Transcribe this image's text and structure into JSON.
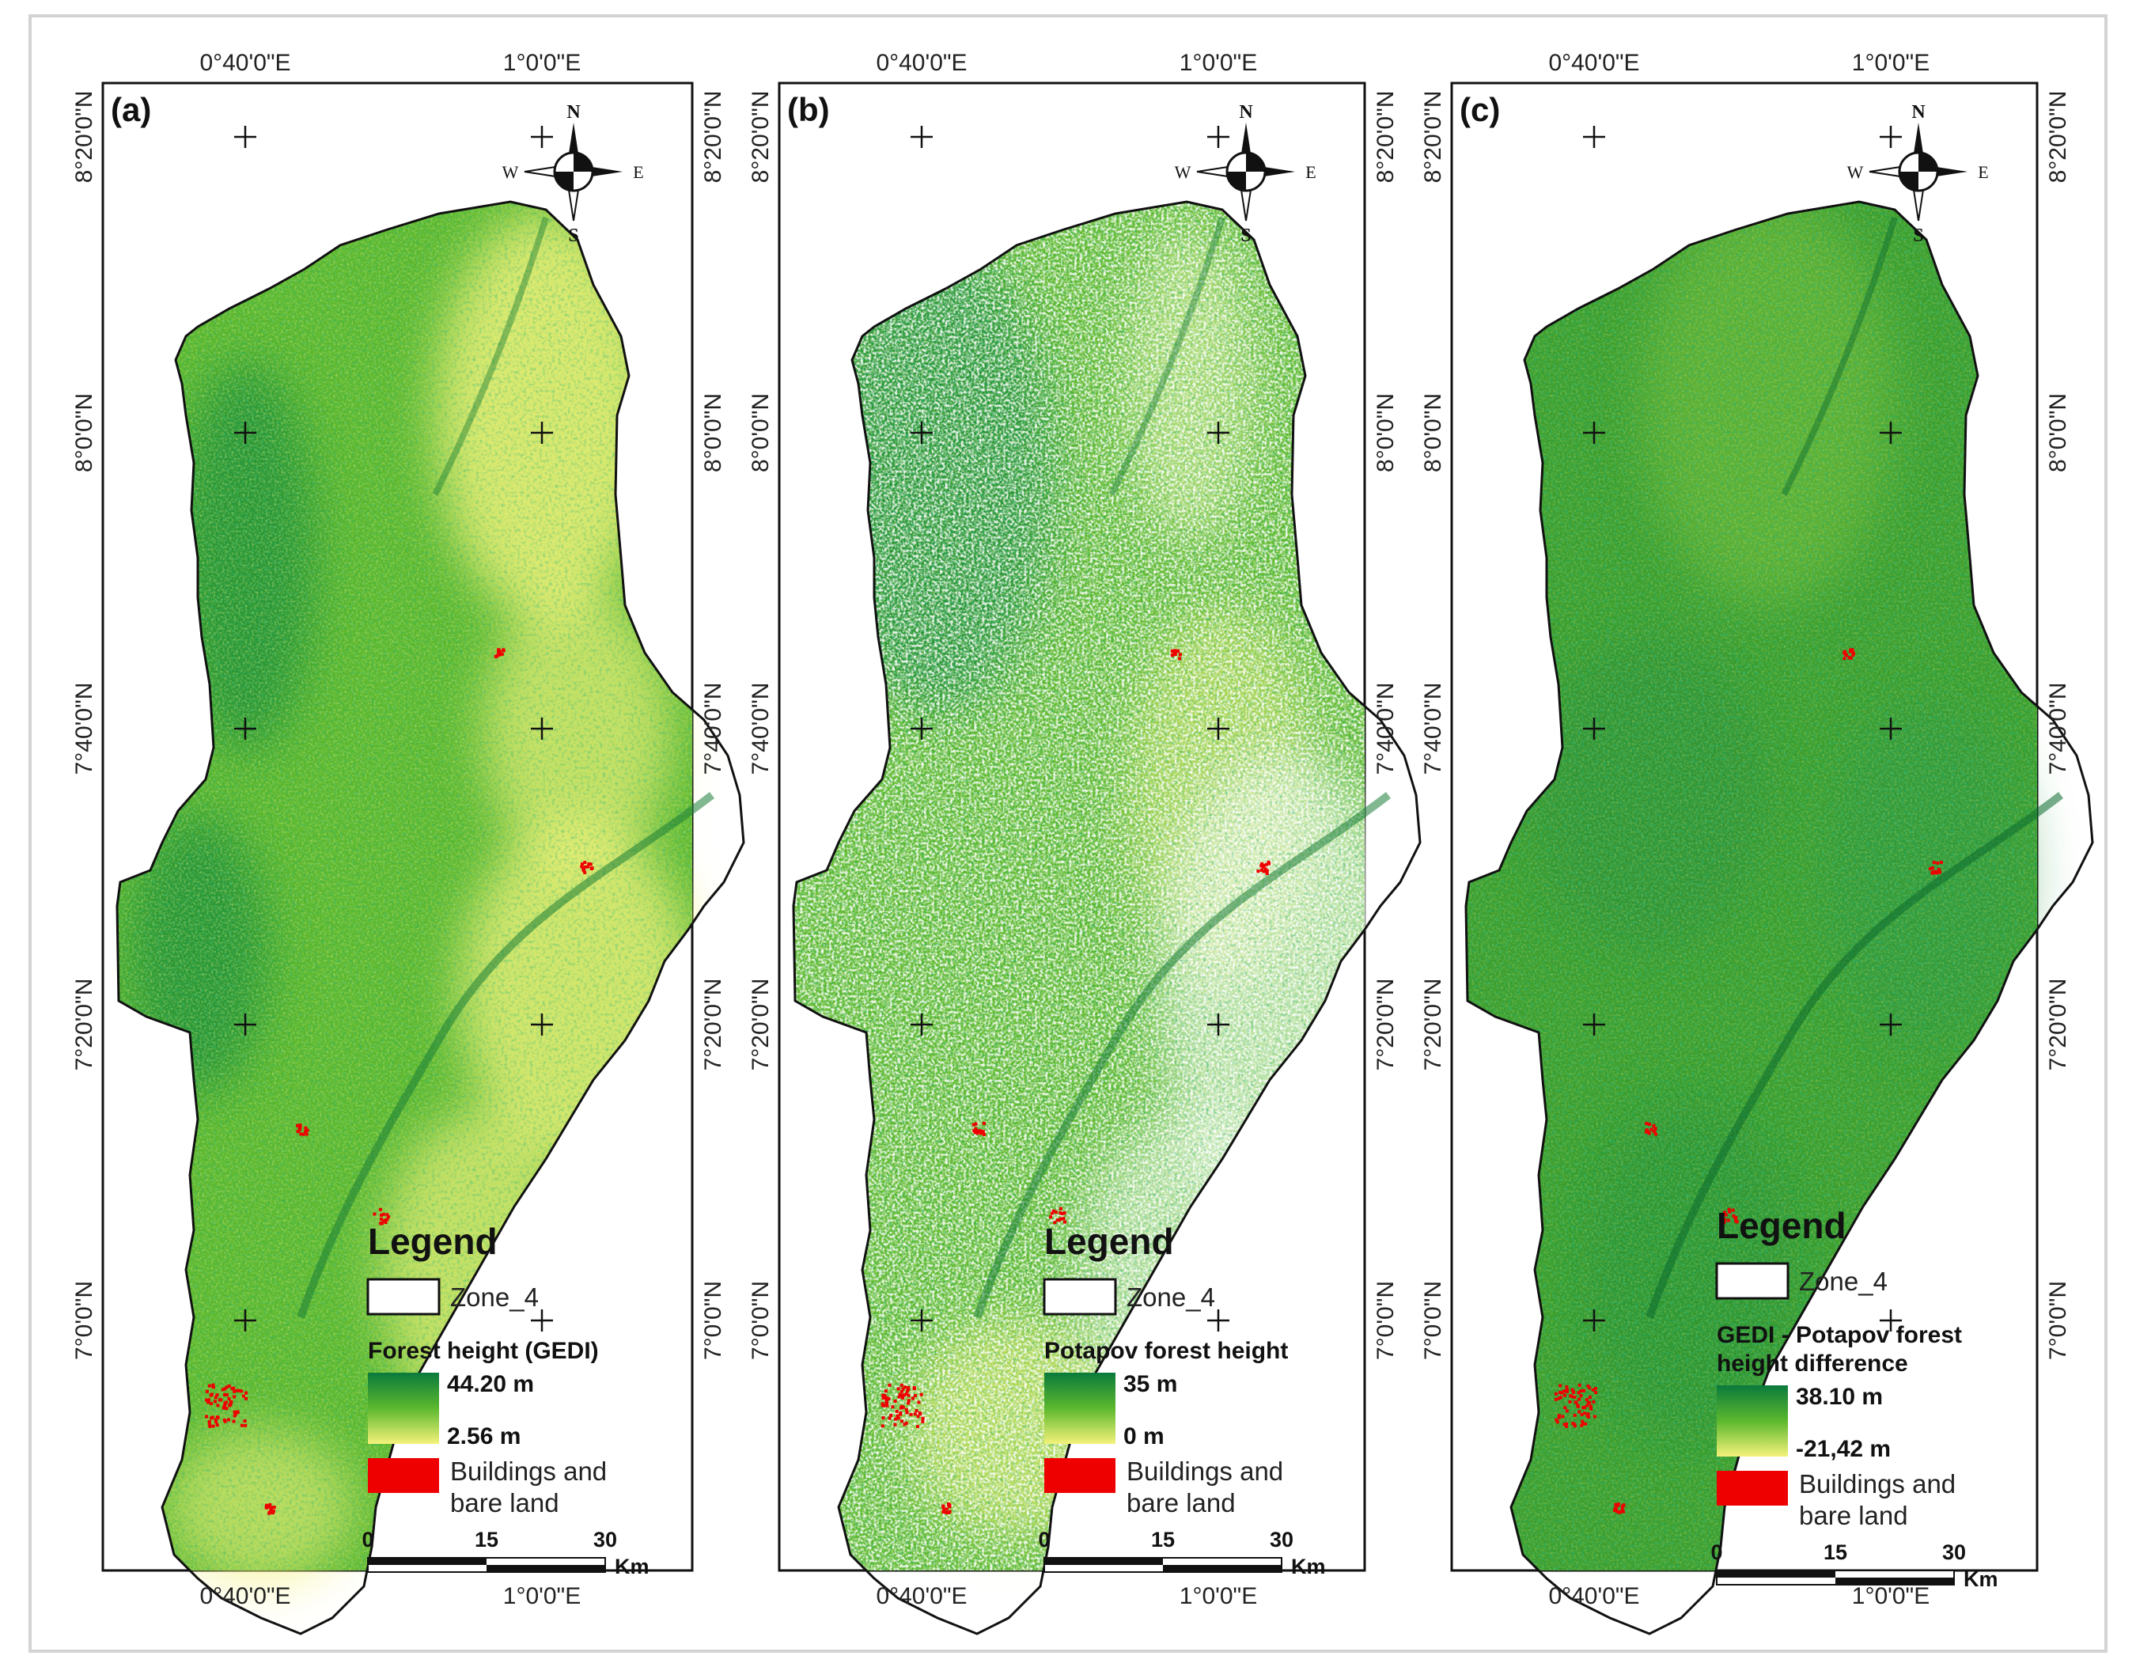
{
  "colors": {
    "high": "#0a7a3c",
    "mid": "#5cb82e",
    "low": "#f4f27a",
    "buildings": "#ee0000",
    "no_data": "#ffffff"
  },
  "axis_labels": {
    "lon_1": "0°40'0\"E",
    "lon_2": "1°0'0\"E",
    "lat_1": "8°20'0\"N",
    "lat_2": "8°0'0\"N",
    "lat_3": "7°40'0\"N",
    "lat_4": "7°20'0\"N",
    "lat_5": "7°0'0\"N"
  },
  "compass": {
    "n": "N",
    "s": "S",
    "e": "E",
    "w": "W"
  },
  "panels": [
    {
      "letter": "(a)",
      "legend_title": "Legend",
      "zone_label": "Zone_4",
      "layer_title_1": "Forest height (GEDI)",
      "layer_title_2": "",
      "max_label": "44.20 m",
      "min_label": "2.56 m",
      "buildings_label_1": "Buildings and",
      "buildings_label_2": "bare land",
      "scale": {
        "s0": "0",
        "s1": "15",
        "s2": "30",
        "unit": "Km"
      },
      "map_style": "a"
    },
    {
      "letter": "(b)",
      "legend_title": "Legend",
      "zone_label": "Zone_4",
      "layer_title_1": "Potapov forest height",
      "layer_title_2": "",
      "max_label": "35 m",
      "min_label": "0 m",
      "buildings_label_1": "Buildings and",
      "buildings_label_2": "bare land",
      "scale": {
        "s0": "0",
        "s1": "15",
        "s2": "30",
        "unit": "Km"
      },
      "map_style": "b"
    },
    {
      "letter": "(c)",
      "legend_title": "Legend",
      "zone_label": "Zone_4",
      "layer_title_1": "GEDI - Potapov forest",
      "layer_title_2": "height difference",
      "max_label": "38.10 m",
      "min_label": "-21,42 m",
      "buildings_label_1": "Buildings and",
      "buildings_label_2": "bare land",
      "scale": {
        "s0": "0",
        "s1": "15",
        "s2": "30",
        "unit": "Km"
      },
      "map_style": "c"
    }
  ]
}
